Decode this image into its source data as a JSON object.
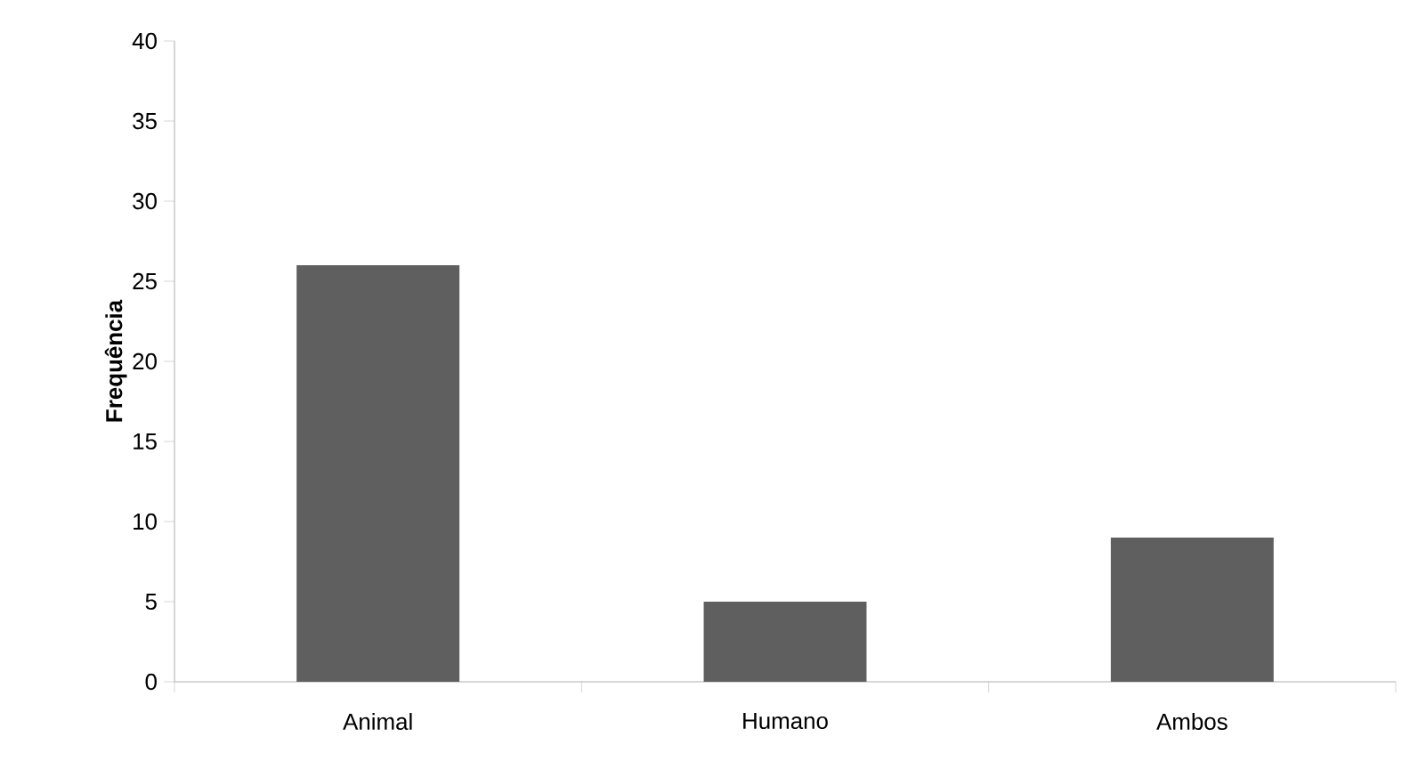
{
  "chart_data": {
    "type": "bar",
    "ylabel": "Frequência",
    "categories": [
      "Animal",
      "Humano",
      "Ambos"
    ],
    "values": [
      26,
      5,
      9
    ],
    "color": "#5f5f5f",
    "ylim": [
      0,
      40
    ],
    "yticks": [
      0,
      5,
      10,
      15,
      20,
      25,
      30,
      35,
      40
    ],
    "grid": false
  }
}
